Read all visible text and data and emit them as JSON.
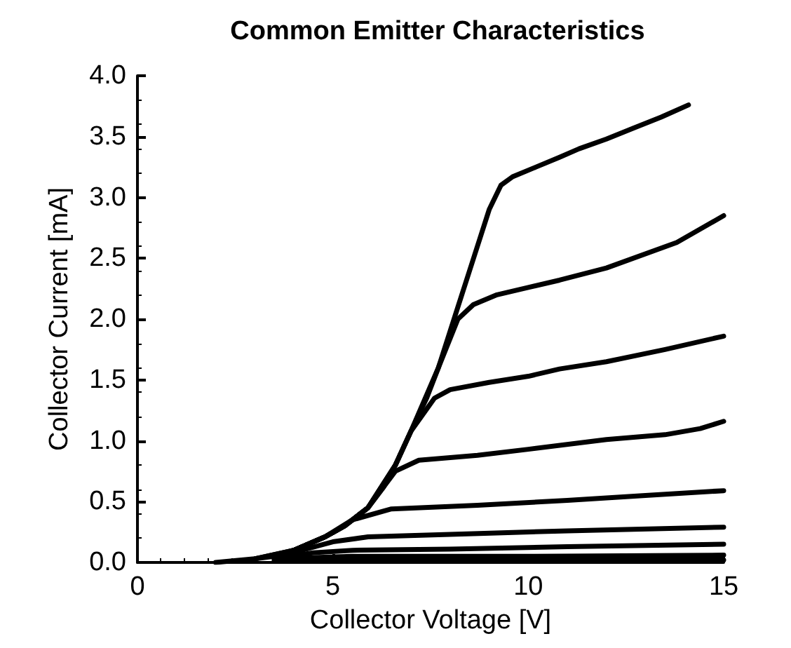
{
  "chart_data": {
    "type": "line",
    "title": "Common Emitter Characteristics",
    "xlabel": "Collector Voltage [V]",
    "ylabel": "Collector Current [mA]",
    "xlim": [
      0,
      15
    ],
    "xticks": [
      0,
      5,
      10,
      15
    ],
    "ylim": [
      0,
      4
    ],
    "yticks": [
      {
        "value": 0,
        "label": "0.0"
      },
      0.5,
      {
        "value": 1,
        "label": "1.0"
      },
      1.5,
      {
        "value": 2,
        "label": "2.0"
      },
      2.5,
      {
        "value": 3,
        "label": "3.0"
      },
      3.5,
      {
        "value": 4,
        "label": "4.0"
      }
    ],
    "grid": false,
    "marker": "none",
    "line_style": "solid",
    "series": [
      {
        "color": "#000000",
        "x": [
          2,
          3,
          3.5,
          4,
          4.8,
          5.3,
          5.9,
          6.3,
          6.6,
          7,
          7.4,
          7.7,
          8.2,
          8.6,
          9,
          9.3,
          9.6,
          10.2,
          10.8,
          11.3,
          12,
          12.7,
          13.4,
          14.1
        ],
        "values": [
          0,
          0.03,
          0.05,
          0.1,
          0.21,
          0.3,
          0.45,
          0.62,
          0.8,
          1.08,
          1.35,
          1.6,
          2.1,
          2.5,
          2.9,
          3.1,
          3.17,
          3.25,
          3.33,
          3.4,
          3.48,
          3.57,
          3.66,
          3.76
        ]
      },
      {
        "color": "#000000",
        "x": [
          3,
          4,
          4.8,
          5.3,
          5.9,
          6.6,
          7,
          7.7,
          8.2,
          8.6,
          9.2,
          10,
          10.8,
          12,
          13.8,
          15
        ],
        "values": [
          0.03,
          0.1,
          0.21,
          0.3,
          0.45,
          0.8,
          1.08,
          1.6,
          2.0,
          2.12,
          2.2,
          2.26,
          2.32,
          2.42,
          2.63,
          2.85
        ]
      },
      {
        "color": "#000000",
        "x": [
          3,
          4,
          4.8,
          5.3,
          5.9,
          6.6,
          7,
          7.6,
          8,
          9,
          10,
          10.8,
          12,
          13.5,
          15
        ],
        "values": [
          0.03,
          0.1,
          0.21,
          0.3,
          0.45,
          0.8,
          1.08,
          1.35,
          1.42,
          1.48,
          1.53,
          1.59,
          1.65,
          1.75,
          1.86
        ]
      },
      {
        "color": "#000000",
        "x": [
          3.5,
          4,
          4.8,
          5.3,
          5.9,
          6.6,
          7.2,
          8.7,
          10,
          12,
          13.5,
          14.4,
          15
        ],
        "values": [
          0.05,
          0.1,
          0.21,
          0.3,
          0.45,
          0.75,
          0.84,
          0.88,
          0.93,
          1.01,
          1.05,
          1.1,
          1.16
        ]
      },
      {
        "color": "#000000",
        "x": [
          3.5,
          4,
          4.8,
          5.5,
          6.5,
          8.7,
          11,
          13,
          15
        ],
        "values": [
          0.05,
          0.1,
          0.21,
          0.35,
          0.44,
          0.47,
          0.51,
          0.55,
          0.59
        ]
      },
      {
        "color": "#000000",
        "x": [
          3.5,
          4.2,
          5,
          5.9,
          8,
          11,
          15
        ],
        "values": [
          0.04,
          0.1,
          0.17,
          0.21,
          0.23,
          0.26,
          0.29
        ]
      },
      {
        "color": "#000000",
        "x": [
          3.5,
          4.5,
          5.5,
          8,
          11,
          15
        ],
        "values": [
          0.03,
          0.08,
          0.1,
          0.11,
          0.13,
          0.15
        ]
      },
      {
        "color": "#000000",
        "x": [
          3.5,
          4.5,
          5.5,
          10,
          15
        ],
        "values": [
          0.02,
          0.04,
          0.05,
          0.05,
          0.06
        ]
      },
      {
        "color": "#000000",
        "x": [
          3.5,
          5,
          10,
          15
        ],
        "values": [
          0.01,
          0.02,
          0.02,
          0.02
        ]
      }
    ]
  }
}
